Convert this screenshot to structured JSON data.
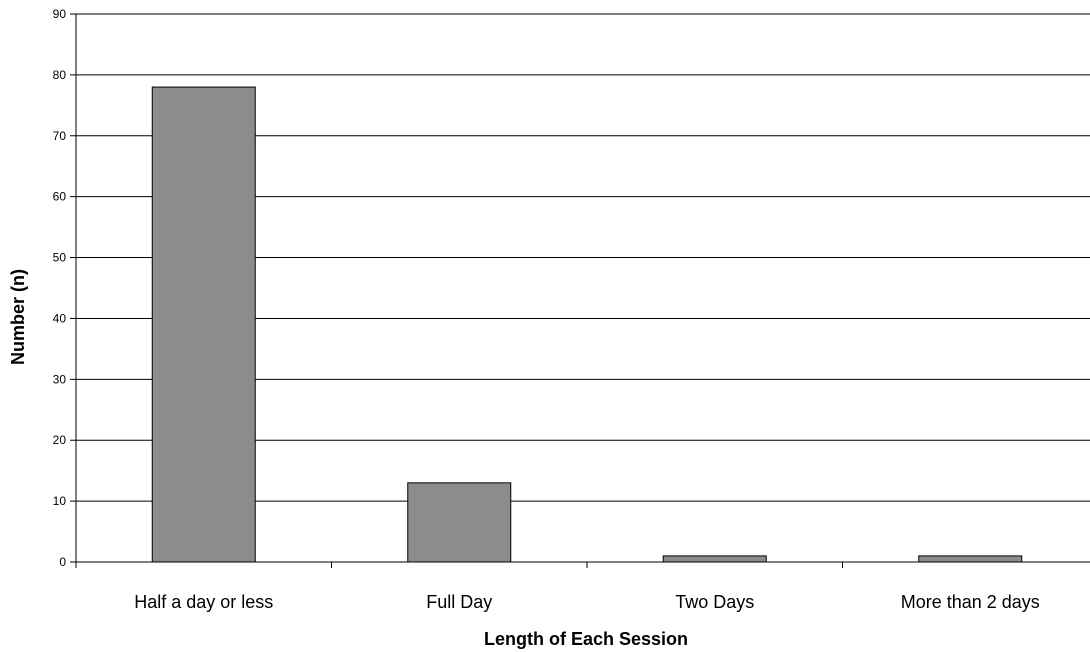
{
  "chart_data": {
    "type": "bar",
    "title": "",
    "xlabel": "Length of Each Session",
    "ylabel": "Number (n)",
    "categories": [
      "Half a day or less",
      "Full Day",
      "Two Days",
      "More than 2 days"
    ],
    "values": [
      78,
      13,
      1,
      1
    ],
    "ylim": [
      0,
      90
    ],
    "yticks": [
      "0",
      "10",
      "20",
      "30",
      "40",
      "50",
      "60",
      "70",
      "80",
      "90"
    ],
    "grid": true,
    "legend": "none",
    "bar_color": "#8c8c8c",
    "bar_edge_color": "#000000"
  }
}
